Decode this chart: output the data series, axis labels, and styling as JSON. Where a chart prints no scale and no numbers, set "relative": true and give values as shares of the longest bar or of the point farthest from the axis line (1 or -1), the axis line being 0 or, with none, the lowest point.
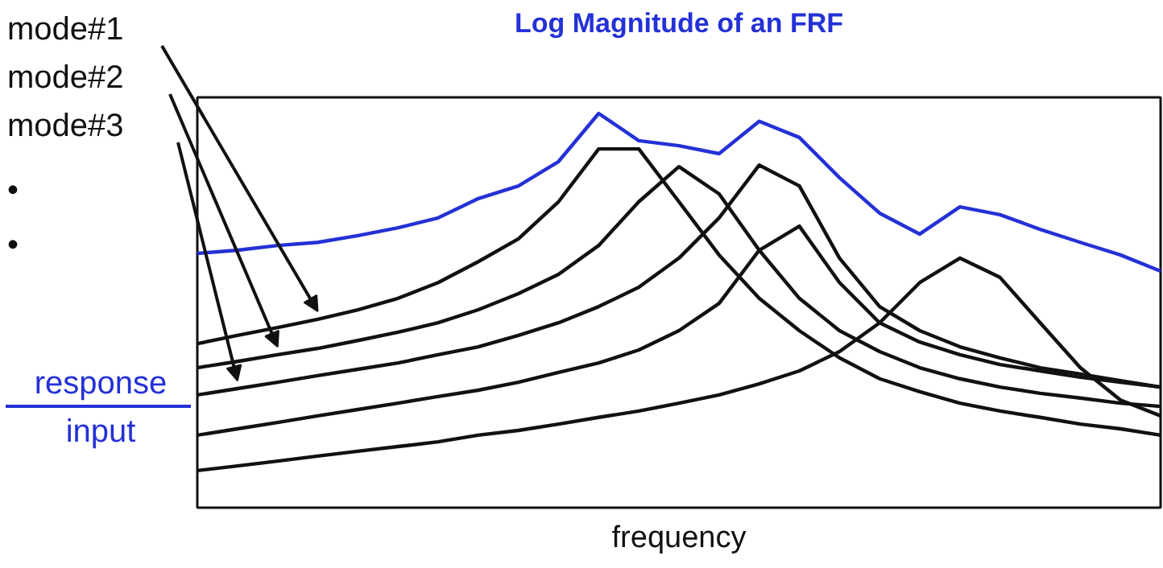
{
  "chart_data": {
    "type": "line",
    "title": "Log Magnitude of an FRF",
    "xlabel": "frequency",
    "ylabel": "response\ninput",
    "relative": true,
    "grid": false,
    "marker": "none",
    "line_style": "solid",
    "categories": [
      null,
      null,
      null,
      null,
      null,
      null,
      null,
      null,
      null,
      null,
      null,
      null,
      null,
      null,
      null,
      null,
      null,
      null,
      null,
      null,
      null,
      null,
      null,
      null,
      null
    ],
    "annotations": [
      "mode#1",
      "mode#2",
      "mode#3",
      "•",
      "•"
    ],
    "series": [
      {
        "color": "#2431d6",
        "values": [
          0.645,
          0.653,
          0.665,
          0.673,
          0.69,
          0.71,
          0.735,
          0.784,
          0.816,
          0.878,
          1.0,
          0.931,
          0.918,
          0.898,
          0.98,
          0.939,
          0.837,
          0.747,
          0.694,
          0.763,
          0.743,
          0.706,
          0.673,
          0.641,
          0.6
        ]
      },
      {
        "color": "#111111",
        "values": [
          0.416,
          0.437,
          0.457,
          0.478,
          0.502,
          0.531,
          0.571,
          0.624,
          0.682,
          0.776,
          0.91,
          0.91,
          0.776,
          0.641,
          0.531,
          0.449,
          0.38,
          0.327,
          0.294,
          0.265,
          0.245,
          0.229,
          0.212,
          0.2,
          0.184
        ]
      },
      {
        "color": "#111111",
        "values": [
          0.355,
          0.371,
          0.388,
          0.404,
          0.424,
          0.445,
          0.469,
          0.502,
          0.543,
          0.592,
          0.665,
          0.776,
          0.865,
          0.796,
          0.653,
          0.531,
          0.449,
          0.396,
          0.355,
          0.327,
          0.306,
          0.29,
          0.278,
          0.265,
          0.257
        ]
      },
      {
        "color": "#111111",
        "values": [
          0.286,
          0.302,
          0.318,
          0.335,
          0.351,
          0.367,
          0.388,
          0.408,
          0.437,
          0.469,
          0.51,
          0.559,
          0.633,
          0.735,
          0.869,
          0.816,
          0.633,
          0.51,
          0.449,
          0.408,
          0.38,
          0.355,
          0.339,
          0.322,
          0.306
        ]
      },
      {
        "color": "#111111",
        "values": [
          0.184,
          0.2,
          0.216,
          0.233,
          0.249,
          0.265,
          0.282,
          0.298,
          0.318,
          0.343,
          0.367,
          0.4,
          0.449,
          0.518,
          0.653,
          0.714,
          0.571,
          0.469,
          0.42,
          0.388,
          0.363,
          0.347,
          0.331,
          0.318,
          0.306
        ]
      },
      {
        "color": "#111111",
        "values": [
          0.094,
          0.106,
          0.118,
          0.131,
          0.143,
          0.155,
          0.167,
          0.184,
          0.196,
          0.212,
          0.229,
          0.245,
          0.265,
          0.286,
          0.314,
          0.347,
          0.396,
          0.469,
          0.571,
          0.633,
          0.584,
          0.469,
          0.355,
          0.273,
          0.233
        ]
      }
    ]
  }
}
